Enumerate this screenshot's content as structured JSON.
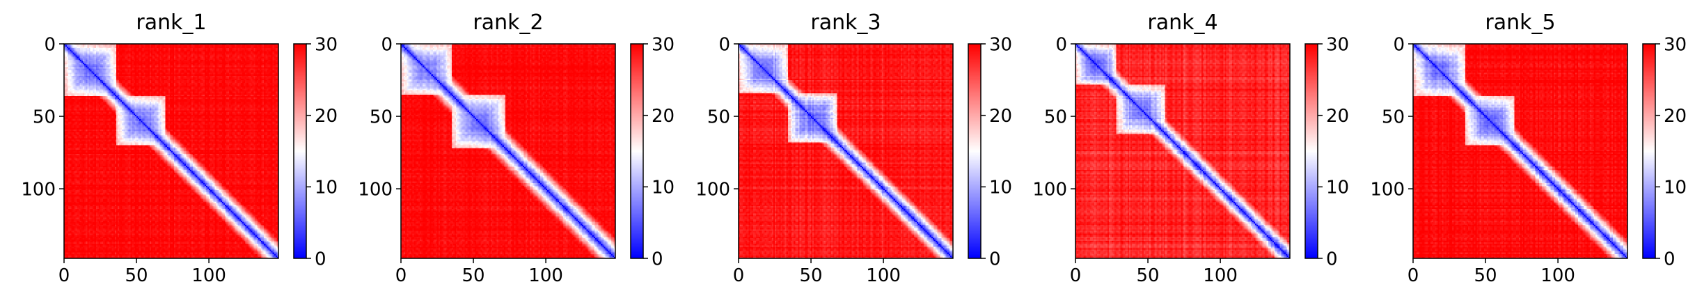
{
  "chart_data": {
    "type": "heatmap",
    "matrix_size": 148,
    "colormap": {
      "name": "bwr",
      "colors": [
        "#0000ff",
        "#ffffff",
        "#ff0000"
      ],
      "range": [
        0,
        30
      ],
      "ticks": [
        0,
        10,
        20,
        30
      ]
    },
    "axes": {
      "x_ticks": [
        0,
        50,
        100
      ],
      "y_ticks": [
        0,
        50,
        100
      ]
    },
    "panels": [
      {
        "title": "rank_1",
        "domains": [
          [
            0,
            36
          ],
          [
            36,
            70
          ]
        ],
        "band_width": 4.5,
        "domain_noise": 0.18,
        "far_level": 30,
        "seed": 11
      },
      {
        "title": "rank_2",
        "domains": [
          [
            0,
            35
          ],
          [
            35,
            72
          ]
        ],
        "band_width": 5.0,
        "domain_noise": 0.2,
        "far_level": 30,
        "seed": 23
      },
      {
        "title": "rank_3",
        "domains": [
          [
            0,
            34
          ],
          [
            34,
            68
          ]
        ],
        "band_width": 4.2,
        "domain_noise": 0.26,
        "far_level": 29,
        "seed": 37
      },
      {
        "title": "rank_4",
        "domains": [
          [
            0,
            28
          ],
          [
            28,
            62
          ]
        ],
        "band_width": 4.0,
        "domain_noise": 0.3,
        "far_level": 28,
        "seed": 41
      },
      {
        "title": "rank_5",
        "domains": [
          [
            0,
            36
          ],
          [
            36,
            70
          ]
        ],
        "band_width": 4.6,
        "domain_noise": 0.22,
        "far_level": 30,
        "seed": 53
      }
    ]
  }
}
